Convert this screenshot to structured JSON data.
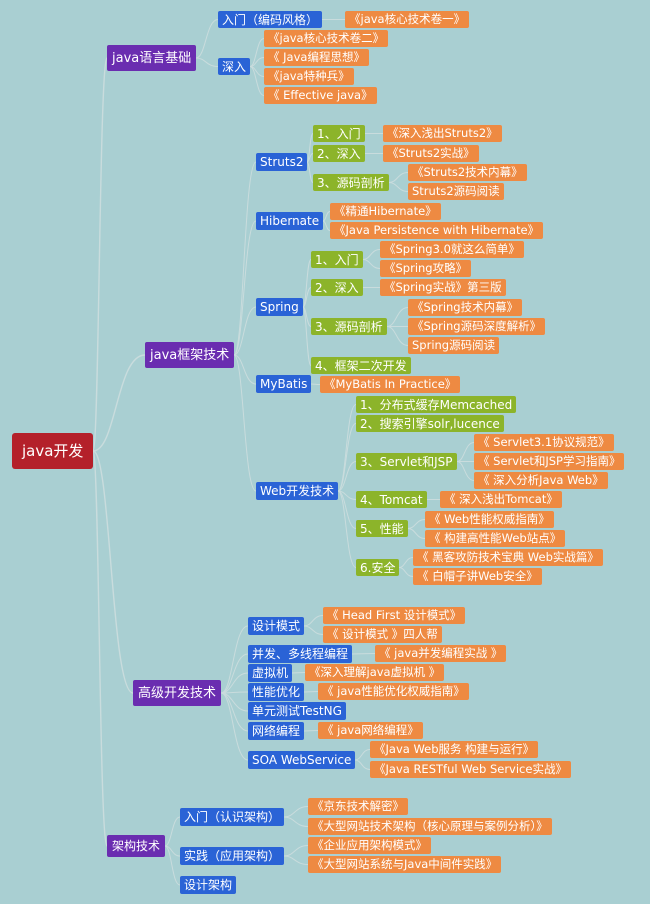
{
  "root": {
    "label": "java开发"
  },
  "branches": [
    {
      "label": "java语言基础",
      "children": [
        {
          "label": "入门（编码风格）",
          "children": [
            {
              "label": "《java核心技术卷一》"
            }
          ]
        },
        {
          "label": "深入",
          "children": [
            {
              "label": "《java核心技术卷二》"
            },
            {
              "label": "《 Java编程思想》"
            },
            {
              "label": "《java特种兵》"
            },
            {
              "label": "《 Effective java》"
            }
          ]
        }
      ]
    },
    {
      "label": "java框架技术",
      "children": [
        {
          "label": "Struts2",
          "children": [
            {
              "label": "1、入门",
              "children": [
                {
                  "label": "《深入浅出Struts2》"
                }
              ]
            },
            {
              "label": "2、深入",
              "children": [
                {
                  "label": "《Struts2实战》"
                }
              ]
            },
            {
              "label": "3、源码剖析",
              "children": [
                {
                  "label": "《Struts2技术内幕》"
                },
                {
                  "label": "Struts2源码阅读"
                }
              ]
            }
          ]
        },
        {
          "label": "Hibernate",
          "children": [
            {
              "label": "《精通Hibernate》"
            },
            {
              "label": "《Java Persistence with Hibernate》"
            }
          ]
        },
        {
          "label": "Spring",
          "children": [
            {
              "label": "1、入门",
              "children": [
                {
                  "label": "《Spring3.0就这么简单》"
                },
                {
                  "label": "《Spring攻略》"
                }
              ]
            },
            {
              "label": "2、深入",
              "children": [
                {
                  "label": "《Spring实战》第三版"
                }
              ]
            },
            {
              "label": "3、源码剖析",
              "children": [
                {
                  "label": "《Spring技术内幕》"
                },
                {
                  "label": "《Spring源码深度解析》"
                },
                {
                  "label": "Spring源码阅读"
                }
              ]
            },
            {
              "label": "4、框架二次开发"
            }
          ]
        },
        {
          "label": "MyBatis",
          "children": [
            {
              "label": "《MyBatis In Practice》"
            }
          ]
        },
        {
          "label": "Web开发技术",
          "children": [
            {
              "label": "1、分布式缓存Memcached"
            },
            {
              "label": "2、搜索引擎solr,lucence"
            },
            {
              "label": "3、Servlet和JSP",
              "children": [
                {
                  "label": "《 Servlet3.1协议规范》"
                },
                {
                  "label": "《 Servlet和JSP学习指南》"
                },
                {
                  "label": "《 深入分析Java Web》"
                }
              ]
            },
            {
              "label": "4、Tomcat",
              "children": [
                {
                  "label": "《 深入浅出Tomcat》"
                }
              ]
            },
            {
              "label": "5、性能",
              "children": [
                {
                  "label": "《 Web性能权威指南》"
                },
                {
                  "label": "《 构建高性能Web站点》"
                }
              ]
            },
            {
              "label": "6.安全",
              "children": [
                {
                  "label": "《 黑客攻防技术宝典 Web实战篇》"
                },
                {
                  "label": "《 白帽子讲Web安全》"
                }
              ]
            }
          ]
        }
      ]
    },
    {
      "label": "高级开发技术",
      "children": [
        {
          "label": "设计模式",
          "children": [
            {
              "label": "《 Head First 设计模式》"
            },
            {
              "label": "《 设计模式 》四人帮"
            }
          ]
        },
        {
          "label": "并发、多线程编程",
          "children": [
            {
              "label": "《 java并发编程实战 》"
            }
          ]
        },
        {
          "label": "虚拟机",
          "children": [
            {
              "label": "《深入理解java虚拟机 》"
            }
          ]
        },
        {
          "label": "性能优化",
          "children": [
            {
              "label": "《 java性能优化权威指南》"
            }
          ]
        },
        {
          "label": "单元测试TestNG"
        },
        {
          "label": "网络编程",
          "children": [
            {
              "label": "《 java网络编程》"
            }
          ]
        },
        {
          "label": "SOA WebService",
          "children": [
            {
              "label": "《Java Web服务 构建与运行》"
            },
            {
              "label": "《Java RESTful Web Service实战》"
            }
          ]
        }
      ]
    },
    {
      "label": "架构技术",
      "children": [
        {
          "label": "入门（认识架构）",
          "children": [
            {
              "label": "《京东技术解密》"
            },
            {
              "label": "《大型网站技术架构（核心原理与案例分析）》"
            }
          ]
        },
        {
          "label": "实践（应用架构）",
          "children": [
            {
              "label": "《企业应用架构模式》"
            },
            {
              "label": "《大型网站系统与Java中间件实践》"
            }
          ]
        },
        {
          "label": "设计架构"
        }
      ]
    }
  ],
  "colors": {
    "background": "#a9cfd2",
    "root": "#b4202a",
    "branch": "#6a2db0",
    "topic": "#2a63d6",
    "subtopic": "#8cb42a",
    "leaf": "#ee8a42",
    "connector": "#c9dcdd"
  }
}
